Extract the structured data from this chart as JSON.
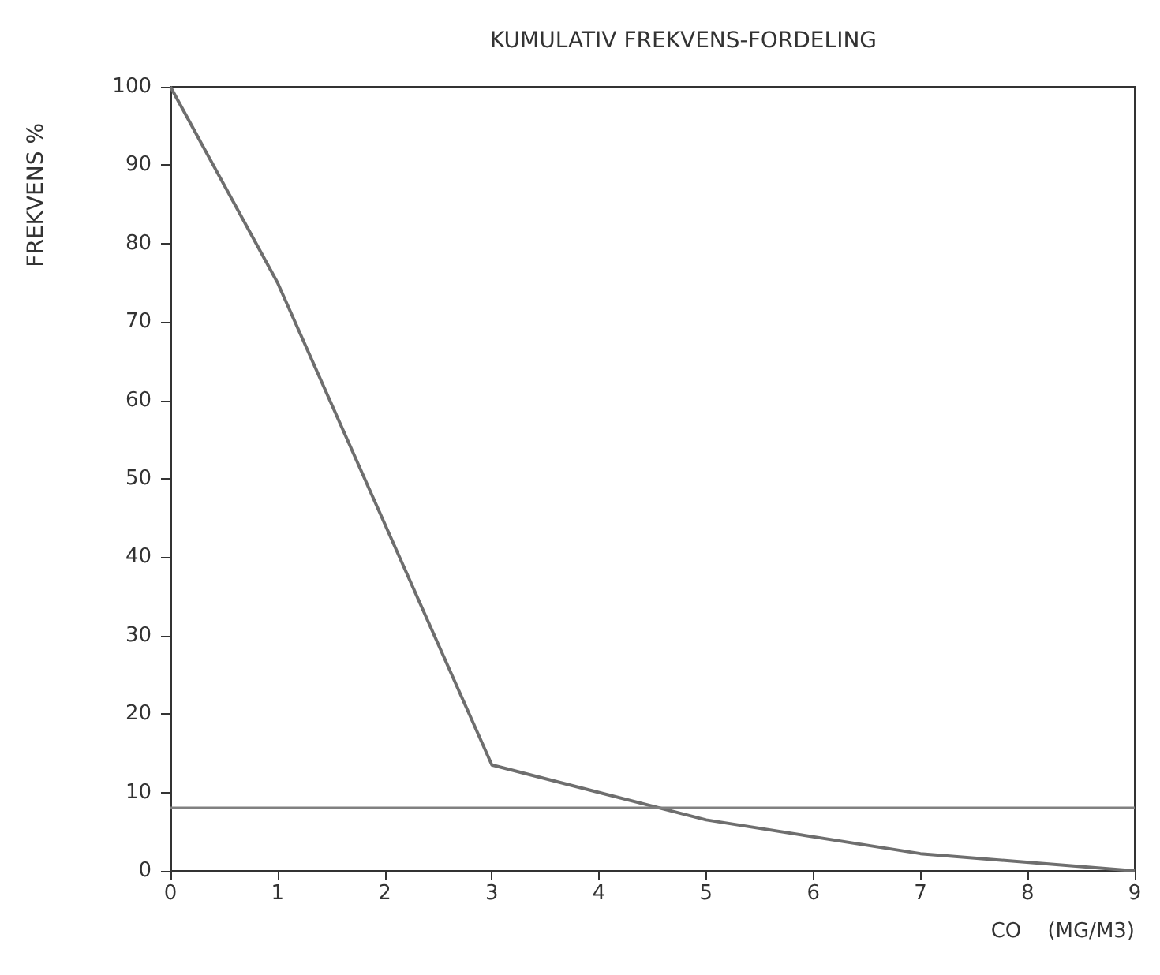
{
  "chart_data": {
    "type": "line",
    "title": "KUMULATIV FREKVENS-FORDELING",
    "xlabel": "CO    (MG/M3)",
    "ylabel": "FREKVENS %",
    "x": [
      0,
      1,
      3,
      5,
      7,
      9
    ],
    "series": [
      {
        "color": "#6e6e6e",
        "values": [
          100,
          75,
          13.5,
          6.5,
          2.2,
          0
        ]
      }
    ],
    "xlim": [
      0,
      9
    ],
    "xticks": [
      0,
      1,
      2,
      3,
      4,
      5,
      6,
      7,
      8,
      9
    ],
    "ylim": [
      0,
      100
    ],
    "yticks": [
      0,
      10,
      20,
      30,
      40,
      50,
      60,
      70,
      80,
      90,
      100
    ],
    "ref_lines": [
      {
        "axis": "y",
        "value": 8,
        "color": "#808080"
      }
    ],
    "grid": false,
    "marker": "none",
    "line_style": "solid"
  }
}
